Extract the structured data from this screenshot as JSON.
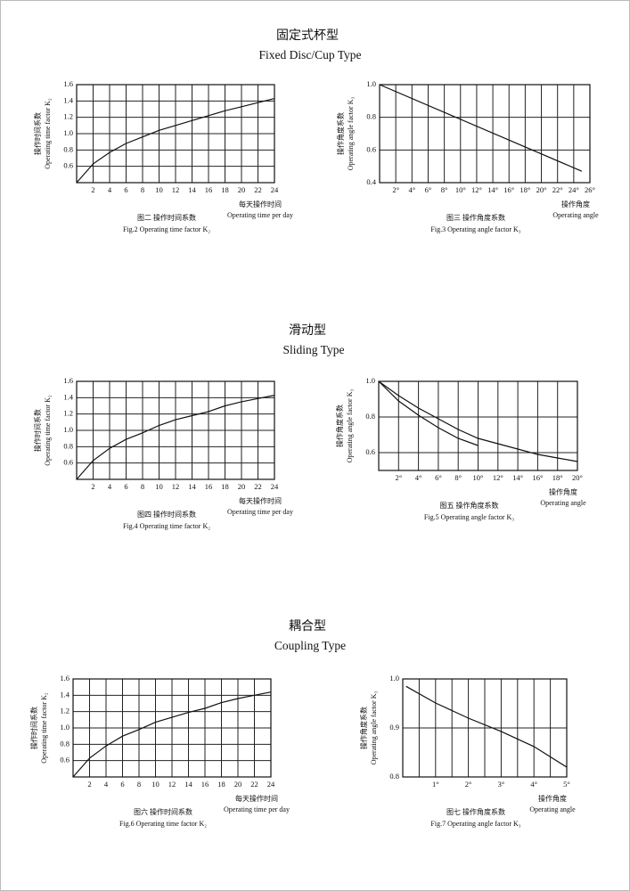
{
  "sections": [
    {
      "title": "固定式杯型",
      "subtitle": "Fixed Disc/Cup Type"
    },
    {
      "title": "滑动型",
      "subtitle": "Sliding Type"
    },
    {
      "title": "耦合型",
      "subtitle": "Coupling Type"
    }
  ],
  "chart_data": [
    {
      "type": "line",
      "caption_cn": "图二  操作时间系数",
      "caption_en": "Fig.2 Operating time factor K₂",
      "ylabel_cn": "操作时间系数",
      "ylabel_en": "Operating time factor K₂",
      "xlabel_cn": "每天操作时间",
      "xlabel_en": "Operating time per day",
      "x": [
        0,
        2,
        4,
        6,
        8,
        10,
        12,
        14,
        16,
        18,
        20,
        22,
        24
      ],
      "series": [
        {
          "color": "#111111",
          "values": [
            0.4,
            0.63,
            0.77,
            0.88,
            0.96,
            1.04,
            1.1,
            1.16,
            1.22,
            1.28,
            1.33,
            1.38,
            1.43
          ]
        }
      ],
      "xlim": [
        0,
        24
      ],
      "xticks": [
        2,
        4,
        6,
        8,
        10,
        12,
        14,
        16,
        18,
        20,
        22,
        24
      ],
      "ylim": [
        0.4,
        1.6
      ],
      "yticks": [
        0.6,
        0.8,
        {
          "value": 1.0,
          "label": "1.0"
        },
        1.2,
        1.4,
        1.6
      ],
      "grid": true
    },
    {
      "type": "line",
      "caption_cn": "图三  操作角度系数",
      "caption_en": "Fig.3 Operating angle factor K₃",
      "ylabel_cn": "操作角度系数",
      "ylabel_en": "Operating angle factor K₃",
      "xlabel_cn": "操作角度",
      "xlabel_en": "Operating angle",
      "x": [
        0,
        25
      ],
      "series": [
        {
          "color": "#111111",
          "values": [
            1.0,
            0.47
          ]
        }
      ],
      "xlim": [
        0,
        26
      ],
      "xticks": [
        {
          "value": 2,
          "label": "2°"
        },
        {
          "value": 4,
          "label": "4°"
        },
        {
          "value": 6,
          "label": "6°"
        },
        {
          "value": 8,
          "label": "8°"
        },
        {
          "value": 10,
          "label": "10°"
        },
        {
          "value": 12,
          "label": "12°"
        },
        {
          "value": 14,
          "label": "14°"
        },
        {
          "value": 16,
          "label": "16°"
        },
        {
          "value": 18,
          "label": "18°"
        },
        {
          "value": 20,
          "label": "20°"
        },
        {
          "value": 22,
          "label": "22°"
        },
        {
          "value": 24,
          "label": "24°"
        },
        {
          "value": 26,
          "label": "26°"
        }
      ],
      "ylim": [
        0.4,
        1.0
      ],
      "yticks": [
        0.4,
        0.6,
        0.8,
        {
          "value": 1.0,
          "label": "1.0"
        }
      ],
      "grid": true
    },
    {
      "type": "line",
      "caption_cn": "图四  操作时间系数",
      "caption_en": "Fig.4 Operating time factor K₂",
      "ylabel_cn": "操作时间系数",
      "ylabel_en": "Operating time factor K₂",
      "xlabel_cn": "每天操作时间",
      "xlabel_en": "Operating time per day",
      "x": [
        0,
        2,
        4,
        6,
        8,
        10,
        12,
        14,
        16,
        18,
        20,
        22,
        24
      ],
      "series": [
        {
          "color": "#111111",
          "values": [
            0.4,
            0.63,
            0.78,
            0.89,
            0.97,
            1.06,
            1.13,
            1.18,
            1.23,
            1.3,
            1.35,
            1.39,
            1.43
          ]
        }
      ],
      "xlim": [
        0,
        24
      ],
      "xticks": [
        2,
        4,
        6,
        8,
        10,
        12,
        14,
        16,
        18,
        20,
        22,
        24
      ],
      "ylim": [
        0.4,
        1.6
      ],
      "yticks": [
        0.6,
        0.8,
        {
          "value": 1.0,
          "label": "1.0"
        },
        1.2,
        1.4,
        1.6
      ],
      "grid": true
    },
    {
      "type": "line",
      "caption_cn": "图五  操作角度系数",
      "caption_en": "Fig.5 Operating angle factor K₃",
      "ylabel_cn": "操作角度系数",
      "ylabel_en": "Operating angle factor K₃",
      "xlabel_cn": "操作角度",
      "xlabel_en": "Operating angle",
      "x": [
        0,
        2,
        4,
        6,
        8,
        10,
        12,
        14,
        16,
        18,
        20
      ],
      "series": [
        {
          "color": "#111111",
          "values": [
            1.0,
            0.92,
            0.85,
            0.79,
            0.73,
            0.68,
            0.65,
            0.62,
            0.59,
            0.57,
            0.55
          ]
        },
        {
          "color": "#111111",
          "values": [
            1.0,
            0.89,
            0.81,
            0.74,
            0.68,
            0.64,
            null,
            null,
            null,
            null,
            null
          ]
        }
      ],
      "xlim": [
        0,
        20
      ],
      "xticks": [
        {
          "value": 2,
          "label": "2°"
        },
        {
          "value": 4,
          "label": "4°"
        },
        {
          "value": 6,
          "label": "6°"
        },
        {
          "value": 8,
          "label": "8°"
        },
        {
          "value": 10,
          "label": "10°"
        },
        {
          "value": 12,
          "label": "12°"
        },
        {
          "value": 14,
          "label": "14°"
        },
        {
          "value": 16,
          "label": "16°"
        },
        {
          "value": 18,
          "label": "18°"
        },
        {
          "value": 20,
          "label": "20°"
        }
      ],
      "ylim": [
        0.5,
        1.0
      ],
      "yticks": [
        0.6,
        0.8,
        {
          "value": 1.0,
          "label": "1.0"
        }
      ],
      "grid": true
    },
    {
      "type": "line",
      "caption_cn": "图六  操作时间系数",
      "caption_en": "Fig.6 Operating time factor K₂",
      "ylabel_cn": "操作时间系数",
      "ylabel_en": "Operating time factor K₂",
      "xlabel_cn": "每天操作时间",
      "xlabel_en": "Operating time per day",
      "x": [
        0,
        2,
        4,
        6,
        8,
        10,
        12,
        14,
        16,
        18,
        20,
        22,
        24
      ],
      "series": [
        {
          "color": "#111111",
          "values": [
            0.4,
            0.63,
            0.78,
            0.9,
            0.98,
            1.07,
            1.13,
            1.19,
            1.24,
            1.31,
            1.36,
            1.4,
            1.44
          ]
        }
      ],
      "xlim": [
        0,
        24
      ],
      "xticks": [
        2,
        4,
        6,
        8,
        10,
        12,
        14,
        16,
        18,
        20,
        22,
        24
      ],
      "ylim": [
        0.4,
        1.6
      ],
      "yticks": [
        0.6,
        0.8,
        {
          "value": 1.0,
          "label": "1.0"
        },
        1.2,
        1.4,
        1.6
      ],
      "grid": true
    },
    {
      "type": "line",
      "caption_cn": "图七  操作角度系数",
      "caption_en": "Fig.7 Operating angle factor K₃",
      "ylabel_cn": "操作角度系数",
      "ylabel_en": "Operating angle factor K₃",
      "xlabel_cn": "操作角度",
      "xlabel_en": "Operating angle",
      "x": [
        0.1,
        1,
        2,
        3,
        4,
        5
      ],
      "series": [
        {
          "color": "#111111",
          "values": [
            0.985,
            0.951,
            0.92,
            0.893,
            0.862,
            0.82
          ]
        }
      ],
      "xlim": [
        0,
        5
      ],
      "xticks": [
        {
          "value": 1,
          "label": "1°"
        },
        {
          "value": 2,
          "label": "2°"
        },
        {
          "value": 3,
          "label": "3°"
        },
        {
          "value": 4,
          "label": "4°"
        },
        {
          "value": 5,
          "label": "5°"
        }
      ],
      "ylim": [
        0.8,
        1.0
      ],
      "yticks": [
        {
          "value": 0.8,
          "label": "0.8"
        },
        {
          "value": 0.9,
          "label": "0.9"
        },
        {
          "value": 1.0,
          "label": "1.0"
        }
      ],
      "grid": true,
      "minor_grid": true
    }
  ]
}
